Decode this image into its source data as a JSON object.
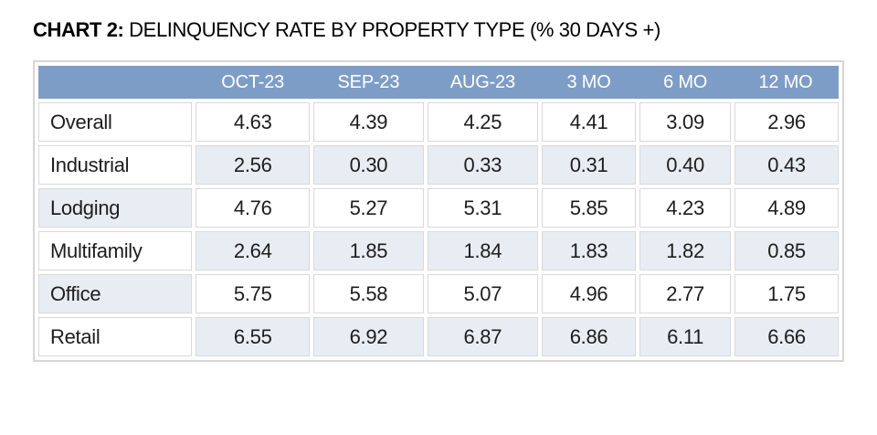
{
  "title": {
    "prefix": "CHART 2:",
    "text": " DELINQUENCY RATE BY PROPERTY TYPE (% 30 DAYS +)"
  },
  "colors": {
    "header_bg": "#7E9DC6",
    "header_text": "#FFFFFF",
    "band_bg": "#E8EDF4",
    "cell_border": "#D9D9D9",
    "outer_border": "#D6D6D6",
    "text": "#1D1D1D"
  },
  "chart_data": {
    "type": "table",
    "title": "CHART 2: DELINQUENCY RATE BY PROPERTY TYPE (% 30 DAYS +)",
    "columns": [
      "",
      "OCT-23",
      "SEP-23",
      "AUG-23",
      "3 MO",
      "6 MO",
      "12 MO"
    ],
    "rows": [
      {
        "label": "Overall",
        "values": [
          "4.63",
          "4.39",
          "4.25",
          "4.41",
          "3.09",
          "2.96"
        ],
        "label_shaded": false,
        "values_shaded": false
      },
      {
        "label": "Industrial",
        "values": [
          "2.56",
          "0.30",
          "0.33",
          "0.31",
          "0.40",
          "0.43"
        ],
        "label_shaded": false,
        "values_shaded": true
      },
      {
        "label": "Lodging",
        "values": [
          "4.76",
          "5.27",
          "5.31",
          "5.85",
          "4.23",
          "4.89"
        ],
        "label_shaded": true,
        "values_shaded": false
      },
      {
        "label": "Multifamily",
        "values": [
          "2.64",
          "1.85",
          "1.84",
          "1.83",
          "1.82",
          "0.85"
        ],
        "label_shaded": false,
        "values_shaded": true
      },
      {
        "label": "Office",
        "values": [
          "5.75",
          "5.58",
          "5.07",
          "4.96",
          "2.77",
          "1.75"
        ],
        "label_shaded": true,
        "values_shaded": false
      },
      {
        "label": "Retail",
        "values": [
          "6.55",
          "6.92",
          "6.87",
          "6.86",
          "6.11",
          "6.66"
        ],
        "label_shaded": false,
        "values_shaded": true
      }
    ]
  }
}
